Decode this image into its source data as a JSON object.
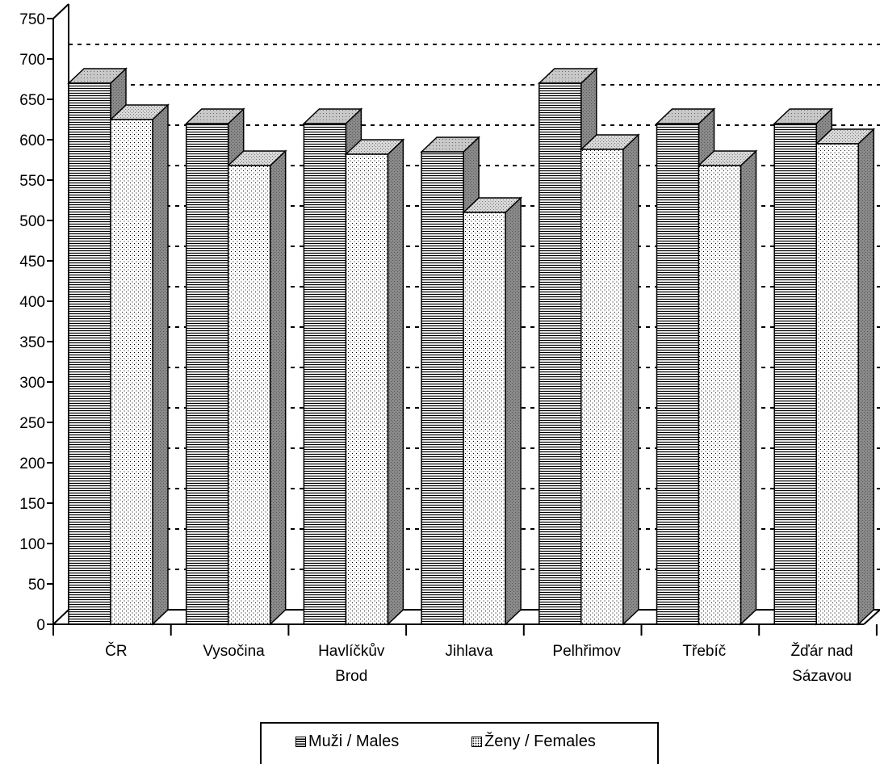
{
  "chart_data": {
    "type": "bar",
    "categories": [
      [
        "ČR"
      ],
      [
        "Vysočina"
      ],
      [
        "Havlíčkův",
        "Brod"
      ],
      [
        "Jihlava"
      ],
      [
        "Pelhřimov"
      ],
      [
        "Třebíč"
      ],
      [
        "Žďár nad",
        "Sázavou"
      ]
    ],
    "series": [
      {
        "name": "Muži / Males",
        "values": [
          670,
          620,
          620,
          585,
          670,
          620,
          620
        ]
      },
      {
        "name": "Ženy / Females",
        "values": [
          625,
          568,
          582,
          510,
          588,
          568,
          595
        ]
      }
    ],
    "title": "",
    "xlabel": "",
    "ylabel": "",
    "ylim": [
      0,
      750
    ],
    "yticks": [
      "0",
      "50",
      "100",
      "150",
      "200",
      "250",
      "300",
      "350",
      "400",
      "450",
      "500",
      "550",
      "600",
      "650",
      "700",
      "750"
    ],
    "grid": "dotted horizontal",
    "legend_position": "bottom",
    "style": "3d clustered columns, black and white patterns"
  },
  "legend": {
    "male_label": "Muži / Males",
    "female_label": "Ženy / Females",
    "male_icon": "horizontal-lines-swatch-icon",
    "female_icon": "dotted-swatch-icon"
  },
  "colors": {
    "ink": "#000000",
    "face": "#ffffff",
    "side": "#808080",
    "top": "#d0d0d0"
  }
}
